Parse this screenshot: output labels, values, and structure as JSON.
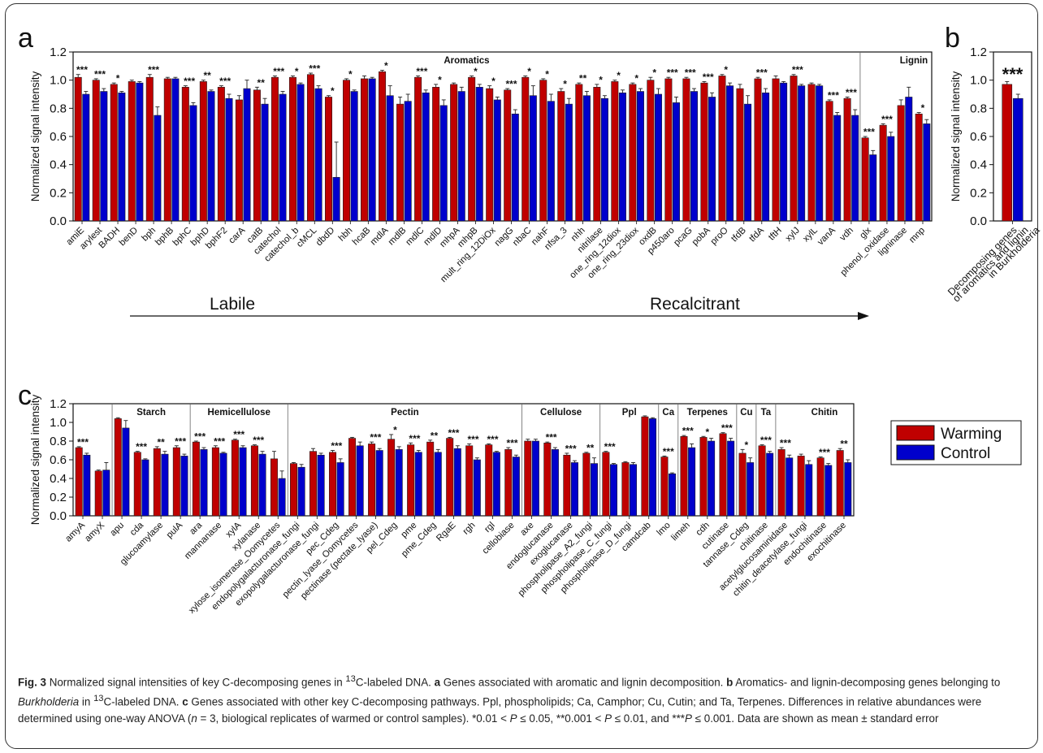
{
  "panels": {
    "a": "a",
    "b": "b",
    "c": "c"
  },
  "legend": {
    "warming": "Warming",
    "control": "Control",
    "warming_color": "#c00000",
    "control_color": "#0000cc"
  },
  "gradient": {
    "left": "Labile",
    "right": "Recalcitrant"
  },
  "chart_data": [
    {
      "id": "a",
      "type": "bar",
      "ylabel": "Normalized signal intensity",
      "ylim": [
        0,
        1.2
      ],
      "yticks": [
        "0.0",
        "0.2",
        "0.4",
        "0.6",
        "0.8",
        "1.0",
        "1.2"
      ],
      "groups": [
        {
          "name": "Aromatics",
          "start": 0,
          "end": 43
        },
        {
          "name": "Lignin",
          "start": 44,
          "end": 49
        }
      ],
      "categories": [
        "amiE",
        "arylest",
        "BADH",
        "benD",
        "bph",
        "bphB",
        "bphC",
        "bphD",
        "bphF2",
        "carA",
        "catB",
        "catechol",
        "catechol_b",
        "cMCL",
        "dbdD",
        "hbh",
        "hcaB",
        "mdlA",
        "mdlB",
        "mdlC",
        "mdlD",
        "mhpA",
        "mhpB",
        "mult_ring_12DiOx",
        "nagG",
        "nbaC",
        "nahF",
        "nfsa_3",
        "nhh",
        "nitrilase",
        "one_ring_12diox",
        "one_ring_23diox",
        "oxdB",
        "p450aro",
        "pcaG",
        "pobA",
        "proO",
        "tfdB",
        "tfdA",
        "tftH",
        "xylJ",
        "xylL",
        "vanA",
        "vdh",
        "glx",
        "phenol_oxidase",
        "ligninase",
        "mnp"
      ],
      "series": [
        {
          "name": "Warming",
          "values": [
            1.02,
            1.0,
            0.97,
            0.99,
            1.02,
            1.01,
            0.95,
            0.99,
            0.95,
            0.86,
            0.93,
            1.02,
            1.02,
            1.04,
            0.88,
            1.0,
            1.01,
            1.06,
            0.83,
            1.02,
            0.95,
            0.97,
            1.02,
            0.94,
            0.93,
            1.02,
            1.0,
            0.92,
            0.97,
            0.95,
            0.99,
            0.97,
            1.0,
            1.01,
            1.01,
            0.98,
            1.03,
            0.94,
            1.01,
            1.01,
            1.03,
            0.97,
            0.85,
            0.87,
            0.59,
            0.68,
            0.82,
            0.76
          ],
          "errors": [
            0.02,
            0.01,
            0.01,
            0.01,
            0.02,
            0.01,
            0.01,
            0.01,
            0.01,
            0.03,
            0.02,
            0.01,
            0.01,
            0.01,
            0.01,
            0.01,
            0.02,
            0.01,
            0.05,
            0.01,
            0.02,
            0.01,
            0.01,
            0.02,
            0.01,
            0.01,
            0.01,
            0.02,
            0.01,
            0.02,
            0.01,
            0.01,
            0.02,
            0.01,
            0.01,
            0.01,
            0.01,
            0.03,
            0.01,
            0.02,
            0.01,
            0.01,
            0.01,
            0.01,
            0.01,
            0.01,
            0.04,
            0.01
          ]
        },
        {
          "name": "Control",
          "values": [
            0.9,
            0.92,
            0.91,
            0.98,
            0.75,
            1.01,
            0.82,
            0.92,
            0.87,
            0.94,
            0.83,
            0.9,
            0.97,
            0.94,
            0.31,
            0.92,
            1.01,
            0.89,
            0.85,
            0.91,
            0.82,
            0.92,
            0.95,
            0.86,
            0.76,
            0.89,
            0.85,
            0.83,
            0.89,
            0.87,
            0.91,
            0.92,
            0.9,
            0.84,
            0.92,
            0.88,
            0.96,
            0.83,
            0.91,
            0.98,
            0.96,
            0.96,
            0.75,
            0.75,
            0.47,
            0.6,
            0.88,
            0.69
          ],
          "errors": [
            0.02,
            0.02,
            0.01,
            0.01,
            0.06,
            0.01,
            0.02,
            0.01,
            0.03,
            0.06,
            0.04,
            0.02,
            0.01,
            0.02,
            0.25,
            0.01,
            0.01,
            0.07,
            0.05,
            0.02,
            0.04,
            0.03,
            0.02,
            0.02,
            0.03,
            0.07,
            0.05,
            0.04,
            0.03,
            0.02,
            0.02,
            0.02,
            0.04,
            0.04,
            0.02,
            0.03,
            0.02,
            0.06,
            0.03,
            0.01,
            0.01,
            0.01,
            0.02,
            0.04,
            0.03,
            0.03,
            0.07,
            0.03
          ]
        }
      ],
      "significance": [
        "***",
        "***",
        "*",
        "",
        "***",
        "",
        "***",
        "**",
        "***",
        "",
        "**",
        "***",
        "*",
        "***",
        "*",
        "*",
        "",
        "*",
        "",
        "***",
        "*",
        "",
        "*",
        "*",
        "***",
        "*",
        "*",
        "*",
        "**",
        "*",
        "*",
        "*",
        "*",
        "***",
        "***",
        "***",
        "*",
        "",
        "***",
        "",
        "***",
        "",
        "***",
        "***",
        "***",
        "***",
        "",
        "*"
      ]
    },
    {
      "id": "b",
      "type": "bar",
      "ylabel": "Normalized signal intensity",
      "ylim": [
        0,
        1.2
      ],
      "yticks": [
        "0.0",
        "0.2",
        "0.4",
        "0.6",
        "0.8",
        "1.0",
        "1.2"
      ],
      "categories": [
        "Decomposing genes of aromatics and lignin in Burkholderia"
      ],
      "category_lines": [
        "Decomposing genes",
        "of aromatics and lignin",
        "in Burkholderia"
      ],
      "series": [
        {
          "name": "Warming",
          "values": [
            0.97
          ],
          "errors": [
            0.02
          ]
        },
        {
          "name": "Control",
          "values": [
            0.87
          ],
          "errors": [
            0.03
          ]
        }
      ],
      "significance": [
        "***"
      ]
    },
    {
      "id": "c",
      "type": "bar",
      "ylabel": "Normalized signal intensity",
      "ylim": [
        0,
        1.2
      ],
      "yticks": [
        "0.0",
        "0.2",
        "0.4",
        "0.6",
        "0.8",
        "1.0",
        "1.2"
      ],
      "groups": [
        {
          "name": "Starch",
          "start": 2,
          "end": 5
        },
        {
          "name": "Hemicellulose",
          "start": 6,
          "end": 10
        },
        {
          "name": "Pectin",
          "start": 11,
          "end": 22
        },
        {
          "name": "Cellulose",
          "start": 23,
          "end": 26
        },
        {
          "name": "Ppl",
          "start": 27,
          "end": 29
        },
        {
          "name": "Ca",
          "start": 30,
          "end": 30
        },
        {
          "name": "Terpenes",
          "start": 31,
          "end": 33
        },
        {
          "name": "Cu",
          "start": 34,
          "end": 34
        },
        {
          "name": "Ta",
          "start": 35,
          "end": 35
        },
        {
          "name": "Chitin",
          "start": 36,
          "end": 40
        }
      ],
      "categories": [
        "amyA",
        "amyX",
        "apu",
        "cda",
        "glucoamylase",
        "pulA",
        "ara",
        "mannanase",
        "xylA",
        "xylanase",
        "xylose_isomerase_Oomycetes",
        "endopolygalacturonase_fungi",
        "exopolygalacturonase_fungi",
        "pec_Cdeg",
        "pectin_lyase_Oomycetes",
        "pectinase (pectate_lyase)",
        "pel_Cdeg",
        "pme",
        "pme_Cdeg",
        "RgaE",
        "rgh",
        "rgl",
        "cellobiase",
        "axe",
        "endoglucanase",
        "exoglucanase",
        "phospholipase_A2_fungi",
        "phospholipase_C_fungi",
        "phospholipase_D_fungi",
        "camdcab",
        "lmo",
        "limeh",
        "cdh",
        "cutinase",
        "tannase_Cdeg",
        "chitinase",
        "acetylglucosaminidase",
        "chitin_deacetylase_fungi",
        "endochitinase",
        "exochitinase"
      ],
      "series": [
        {
          "name": "Warming",
          "values": [
            0.73,
            0.48,
            1.04,
            0.68,
            0.72,
            0.73,
            0.79,
            0.73,
            0.81,
            0.75,
            0.61,
            0.56,
            0.69,
            0.68,
            0.83,
            0.77,
            0.82,
            0.76,
            0.79,
            0.83,
            0.75,
            0.76,
            0.71,
            0.8,
            0.78,
            0.65,
            0.67,
            0.68,
            0.57,
            1.06,
            0.63,
            0.85,
            0.84,
            0.88,
            0.67,
            0.75,
            0.71,
            0.64,
            0.62,
            0.7
          ],
          "errors": [
            0.01,
            0.01,
            0.01,
            0.01,
            0.02,
            0.02,
            0.01,
            0.02,
            0.01,
            0.01,
            0.08,
            0.01,
            0.03,
            0.02,
            0.01,
            0.02,
            0.05,
            0.02,
            0.02,
            0.01,
            0.02,
            0.01,
            0.02,
            0.02,
            0.01,
            0.02,
            0.01,
            0.01,
            0.01,
            0.01,
            0.01,
            0.01,
            0.01,
            0.01,
            0.04,
            0.01,
            0.02,
            0.02,
            0.01,
            0.02
          ]
        },
        {
          "name": "Control",
          "values": [
            0.65,
            0.49,
            0.94,
            0.6,
            0.66,
            0.64,
            0.71,
            0.67,
            0.73,
            0.66,
            0.4,
            0.52,
            0.65,
            0.57,
            0.75,
            0.7,
            0.71,
            0.68,
            0.68,
            0.72,
            0.6,
            0.68,
            0.63,
            0.8,
            0.71,
            0.57,
            0.56,
            0.55,
            0.55,
            1.04,
            0.45,
            0.73,
            0.8,
            0.8,
            0.57,
            0.67,
            0.62,
            0.55,
            0.54,
            0.57
          ],
          "errors": [
            0.02,
            0.08,
            0.08,
            0.01,
            0.03,
            0.02,
            0.02,
            0.01,
            0.02,
            0.03,
            0.08,
            0.03,
            0.02,
            0.04,
            0.04,
            0.02,
            0.03,
            0.02,
            0.03,
            0.03,
            0.02,
            0.01,
            0.02,
            0.02,
            0.02,
            0.02,
            0.06,
            0.01,
            0.02,
            0.01,
            0.01,
            0.04,
            0.03,
            0.03,
            0.05,
            0.02,
            0.03,
            0.04,
            0.02,
            0.03
          ]
        }
      ],
      "significance": [
        "***",
        "",
        "",
        "***",
        "**",
        "***",
        "***",
        "***",
        "***",
        "***",
        "",
        "",
        "",
        "***",
        "",
        "***",
        "*",
        "***",
        "**",
        "***",
        "***",
        "***",
        "***",
        "",
        "***",
        "***",
        "**",
        "***",
        "",
        "",
        "***",
        "***",
        "*",
        "***",
        "*",
        "***",
        "***",
        "",
        "***",
        "**"
      ]
    }
  ],
  "caption": {
    "fig": "Fig. 3",
    "t1": " Normalized signal intensities of key C-decomposing genes in ",
    "sup13": "13",
    "t2": "C-labeled DNA. ",
    "a": "a",
    "t3": " Genes associated with aromatic and lignin decomposition. ",
    "b": "b",
    "t4": " Aromatics- and lignin-decomposing genes belonging to ",
    "burk": "Burkholderia",
    "t5": " in ",
    "t6": "C-labeled DNA. ",
    "c": "c",
    "t7": " Genes associated with other key C-decomposing pathways. Ppl, phospholipids; Ca, Camphor; Cu, Cutin; and Ta, Terpenes. Differences in relative abundances were determined using one-way ANOVA (",
    "n": "n",
    "t8": " = 3, biological replicates of warmed or control samples). *0.01 < ",
    "P1": "P",
    "t9": " ≤ 0.05, **0.001 < ",
    "P2": "P",
    "t10": " ≤ 0.01, and ***",
    "P3": "P",
    "t11": " ≤ 0.001. Data are shown as mean ± standard error"
  }
}
